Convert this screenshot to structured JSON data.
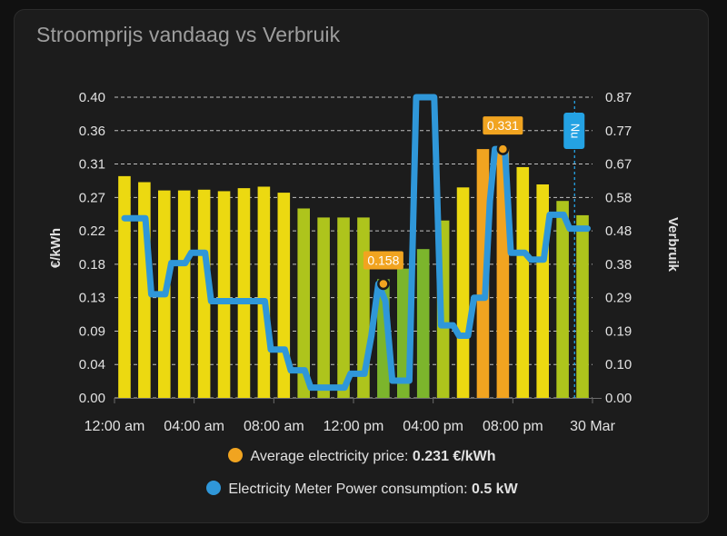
{
  "card": {
    "title": "Stroomprijs vandaag vs Verbruik"
  },
  "colors": {
    "price_yellow": "#ecd911",
    "price_lime": "#aec41c",
    "price_green": "#7cb52c",
    "price_orange": "#f1a420",
    "power_line": "#2f97d9",
    "now_marker": "#24a2e3",
    "grid": "#dddddd",
    "text": "#e1e1e1"
  },
  "legend": [
    {
      "label": "Average electricity price:",
      "value": "0.231 €/kWh",
      "color": "#f1a420"
    },
    {
      "label": "Electricity Meter Power consumption:",
      "value": "0.5 kW",
      "color": "#2f97d9"
    }
  ],
  "chart_data": {
    "type": "bar+line",
    "y_left": {
      "label": "€/kWh",
      "ticks": [
        "0.40",
        "0.36",
        "0.31",
        "0.27",
        "0.22",
        "0.18",
        "0.13",
        "0.09",
        "0.04",
        "0.00"
      ],
      "range": [
        0,
        0.4
      ]
    },
    "y_right": {
      "label": "Verbruik",
      "ticks": [
        "0.87",
        "0.77",
        "0.67",
        "0.58",
        "0.48",
        "0.38",
        "0.29",
        "0.19",
        "0.10",
        "0.00"
      ],
      "range": [
        0,
        0.87
      ]
    },
    "x_ticks": [
      "12:00 am",
      "04:00 am",
      "08:00 am",
      "12:00 pm",
      "04:00 pm",
      "08:00 pm",
      "30 Mar"
    ],
    "grid": "horizontal dashed",
    "price_series": {
      "name": "Average electricity price",
      "hours": [
        0,
        1,
        2,
        3,
        4,
        5,
        6,
        7,
        8,
        9,
        10,
        11,
        12,
        13,
        14,
        15,
        16,
        17,
        18,
        19,
        20,
        21,
        22,
        23
      ],
      "values": [
        0.295,
        0.287,
        0.276,
        0.276,
        0.277,
        0.275,
        0.279,
        0.281,
        0.273,
        0.252,
        0.24,
        0.24,
        0.24,
        0.158,
        0.172,
        0.198,
        0.236,
        0.28,
        0.331,
        0.331,
        0.307,
        0.284,
        0.262,
        0.243
      ],
      "color_classes": [
        "yellow",
        "yellow",
        "yellow",
        "yellow",
        "yellow",
        "yellow",
        "yellow",
        "yellow",
        "yellow",
        "lime",
        "lime",
        "lime",
        "lime",
        "green",
        "green",
        "green",
        "lime",
        "yellow",
        "orange",
        "orange",
        "yellow",
        "yellow",
        "lime",
        "lime"
      ],
      "labels": [
        {
          "hour": 13,
          "text": "0.158"
        },
        {
          "hour": 19,
          "text": "0.331"
        }
      ]
    },
    "power_series": {
      "name": "Electricity Meter Power consumption",
      "points": [
        [
          0.0,
          0.52
        ],
        [
          1.05,
          0.52
        ],
        [
          1.35,
          0.3
        ],
        [
          2.05,
          0.3
        ],
        [
          2.35,
          0.39
        ],
        [
          3.05,
          0.39
        ],
        [
          3.35,
          0.42
        ],
        [
          4.05,
          0.42
        ],
        [
          4.35,
          0.28
        ],
        [
          7.05,
          0.28
        ],
        [
          7.35,
          0.14
        ],
        [
          8.05,
          0.14
        ],
        [
          8.35,
          0.08
        ],
        [
          9.05,
          0.08
        ],
        [
          9.35,
          0.03
        ],
        [
          11.05,
          0.03
        ],
        [
          11.35,
          0.07
        ],
        [
          12.05,
          0.07
        ],
        [
          12.4,
          0.18
        ],
        [
          12.75,
          0.33
        ],
        [
          13.1,
          0.28
        ],
        [
          13.45,
          0.05
        ],
        [
          14.3,
          0.05
        ],
        [
          14.65,
          0.87
        ],
        [
          15.55,
          0.87
        ],
        [
          15.9,
          0.21
        ],
        [
          16.5,
          0.21
        ],
        [
          16.8,
          0.18
        ],
        [
          17.25,
          0.18
        ],
        [
          17.55,
          0.29
        ],
        [
          18.1,
          0.29
        ],
        [
          18.35,
          0.57
        ],
        [
          18.6,
          0.72
        ],
        [
          19.1,
          0.72
        ],
        [
          19.4,
          0.42
        ],
        [
          20.1,
          0.42
        ],
        [
          20.4,
          0.4
        ],
        [
          21.05,
          0.4
        ],
        [
          21.35,
          0.53
        ],
        [
          22.05,
          0.53
        ],
        [
          22.35,
          0.49
        ],
        [
          23.25,
          0.49
        ]
      ],
      "marker": {
        "hour": 18.6
      }
    },
    "now_marker": {
      "label": "Nu",
      "hour": 23.1
    }
  }
}
